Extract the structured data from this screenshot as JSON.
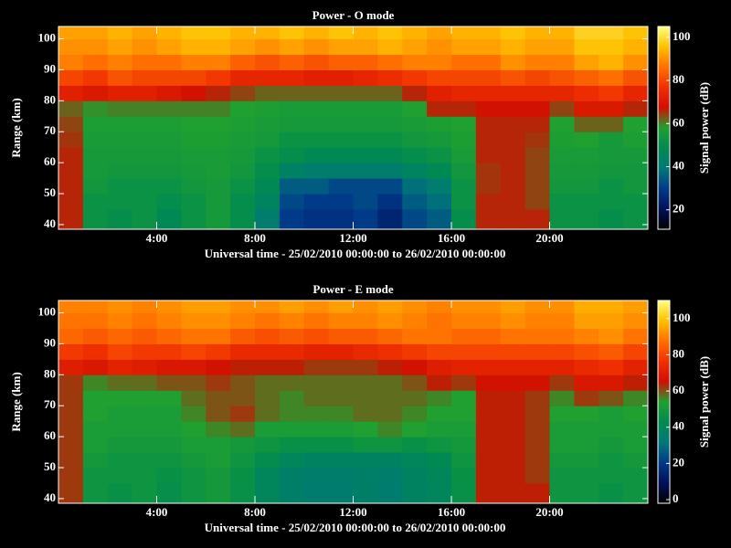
{
  "chart_data": [
    {
      "type": "heatmap",
      "title": "Power - O mode",
      "xlabel": "Universal time - 25/02/2010 00:00:00 to 26/02/2010 00:00:00",
      "ylabel": "Range (km)",
      "xlim": [
        0,
        24
      ],
      "ylim": [
        38.5,
        104
      ],
      "xticks": [
        {
          "value": 4,
          "label": "4:00"
        },
        {
          "value": 8,
          "label": "8:00"
        },
        {
          "value": 12,
          "label": "12:00"
        },
        {
          "value": 16,
          "label": "16:00"
        },
        {
          "value": 20,
          "label": "20:00"
        }
      ],
      "yticks": [
        40,
        50,
        60,
        70,
        80,
        90,
        100
      ],
      "xbins": [
        0,
        1,
        2,
        3,
        4,
        5,
        6,
        7,
        8,
        9,
        10,
        11,
        12,
        13,
        14,
        15,
        16,
        17,
        18,
        19,
        20,
        21,
        22,
        23,
        24
      ],
      "ybins": [
        38.5,
        45,
        50,
        55,
        60,
        65,
        70,
        75,
        80,
        85,
        90,
        95,
        100,
        104
      ],
      "values": [
        [
          66,
          52,
          50,
          52,
          48,
          52,
          55,
          50,
          42,
          30,
          28,
          28,
          30,
          25,
          32,
          35,
          50,
          66,
          66,
          66,
          52,
          52,
          50,
          52
        ],
        [
          66,
          52,
          52,
          52,
          50,
          52,
          55,
          50,
          45,
          32,
          30,
          30,
          32,
          28,
          35,
          38,
          52,
          66,
          66,
          64,
          52,
          52,
          52,
          52
        ],
        [
          66,
          54,
          52,
          52,
          52,
          54,
          55,
          52,
          48,
          35,
          35,
          32,
          32,
          32,
          38,
          42,
          52,
          65,
          66,
          64,
          54,
          54,
          52,
          54
        ],
        [
          66,
          55,
          54,
          54,
          54,
          55,
          56,
          54,
          50,
          44,
          42,
          42,
          42,
          42,
          45,
          48,
          54,
          65,
          66,
          64,
          55,
          55,
          54,
          54
        ],
        [
          66,
          55,
          55,
          55,
          55,
          56,
          56,
          55,
          52,
          50,
          48,
          48,
          48,
          48,
          50,
          52,
          56,
          66,
          66,
          64,
          56,
          56,
          55,
          55
        ],
        [
          65,
          56,
          56,
          56,
          56,
          57,
          57,
          56,
          55,
          52,
          52,
          52,
          52,
          52,
          54,
          55,
          57,
          66,
          66,
          65,
          57,
          58,
          55,
          57
        ],
        [
          64,
          57,
          57,
          57,
          57,
          58,
          58,
          57,
          56,
          55,
          55,
          55,
          55,
          55,
          56,
          57,
          58,
          66,
          66,
          66,
          58,
          62,
          62,
          58
        ],
        [
          62,
          59,
          60,
          60,
          60,
          60,
          60,
          58,
          57,
          56,
          56,
          56,
          56,
          56,
          58,
          66,
          66,
          68,
          68,
          68,
          64,
          70,
          70,
          66
        ],
        [
          72,
          70,
          72,
          72,
          70,
          68,
          66,
          64,
          62,
          62,
          62,
          62,
          62,
          62,
          66,
          72,
          74,
          74,
          74,
          74,
          74,
          76,
          78,
          74
        ],
        [
          80,
          78,
          82,
          80,
          80,
          80,
          78,
          74,
          74,
          74,
          72,
          72,
          74,
          76,
          78,
          80,
          80,
          80,
          82,
          80,
          82,
          84,
          86,
          82
        ],
        [
          88,
          86,
          88,
          86,
          86,
          88,
          88,
          84,
          82,
          84,
          82,
          84,
          84,
          86,
          88,
          88,
          86,
          86,
          90,
          88,
          88,
          92,
          94,
          90
        ],
        [
          90,
          90,
          92,
          90,
          92,
          94,
          94,
          92,
          90,
          92,
          90,
          92,
          92,
          94,
          92,
          90,
          92,
          92,
          94,
          92,
          92,
          96,
          96,
          94
        ],
        [
          92,
          92,
          94,
          92,
          94,
          96,
          96,
          94,
          94,
          96,
          94,
          96,
          94,
          96,
          94,
          92,
          94,
          94,
          96,
          94,
          94,
          98,
          98,
          96
        ]
      ],
      "colorbar": {
        "label": "Signal power (dB)",
        "lim": [
          11,
          105
        ],
        "ticks": [
          20,
          40,
          60,
          80,
          100
        ]
      },
      "colormap": [
        "#000000",
        "#00105a",
        "#003a8a",
        "#007878",
        "#008a50",
        "#20a030",
        "#d01000",
        "#f03000",
        "#ff7000",
        "#ffc000",
        "#ffff80"
      ]
    },
    {
      "type": "heatmap",
      "title": "Power - E mode",
      "xlabel": "Universal time - 25/02/2010 00:00:00 to 26/02/2010 00:00:00",
      "ylabel": "Range (km)",
      "xlim": [
        0,
        24
      ],
      "ylim": [
        38.5,
        104
      ],
      "xticks": [
        {
          "value": 4,
          "label": "4:00"
        },
        {
          "value": 8,
          "label": "8:00"
        },
        {
          "value": 12,
          "label": "12:00"
        },
        {
          "value": 16,
          "label": "16:00"
        },
        {
          "value": 20,
          "label": "20:00"
        }
      ],
      "yticks": [
        40,
        50,
        60,
        70,
        80,
        90,
        100
      ],
      "xbins": [
        0,
        1,
        2,
        3,
        4,
        5,
        6,
        7,
        8,
        9,
        10,
        11,
        12,
        13,
        14,
        15,
        16,
        17,
        18,
        19,
        20,
        21,
        22,
        23,
        24
      ],
      "ybins": [
        38.5,
        45,
        50,
        55,
        60,
        65,
        70,
        75,
        80,
        85,
        90,
        95,
        100,
        104
      ],
      "values": [
        [
          62,
          48,
          46,
          48,
          45,
          48,
          50,
          46,
          40,
          36,
          34,
          34,
          36,
          34,
          38,
          40,
          46,
          64,
          64,
          64,
          48,
          48,
          46,
          48
        ],
        [
          62,
          48,
          48,
          48,
          46,
          48,
          50,
          46,
          40,
          36,
          35,
          35,
          36,
          35,
          38,
          40,
          46,
          64,
          64,
          62,
          48,
          48,
          48,
          48
        ],
        [
          62,
          50,
          48,
          48,
          48,
          50,
          52,
          48,
          44,
          40,
          38,
          38,
          38,
          38,
          40,
          42,
          48,
          64,
          64,
          62,
          50,
          50,
          48,
          50
        ],
        [
          62,
          52,
          50,
          50,
          50,
          52,
          52,
          50,
          48,
          46,
          46,
          46,
          48,
          48,
          46,
          48,
          50,
          64,
          64,
          62,
          52,
          52,
          50,
          52
        ],
        [
          62,
          52,
          52,
          52,
          52,
          54,
          56,
          58,
          52,
          52,
          52,
          52,
          54,
          56,
          54,
          52,
          52,
          64,
          64,
          62,
          52,
          52,
          52,
          52
        ],
        [
          62,
          54,
          52,
          52,
          52,
          56,
          60,
          62,
          58,
          56,
          56,
          56,
          58,
          58,
          56,
          54,
          54,
          64,
          64,
          62,
          54,
          54,
          52,
          54
        ],
        [
          62,
          54,
          54,
          54,
          54,
          58,
          60,
          60,
          58,
          56,
          58,
          58,
          58,
          58,
          58,
          56,
          54,
          64,
          64,
          62,
          56,
          62,
          60,
          56
        ],
        [
          62,
          56,
          58,
          58,
          60,
          60,
          62,
          60,
          58,
          58,
          58,
          58,
          58,
          58,
          60,
          64,
          62,
          66,
          66,
          66,
          62,
          68,
          68,
          64
        ],
        [
          70,
          68,
          72,
          70,
          68,
          68,
          66,
          64,
          64,
          64,
          62,
          62,
          62,
          64,
          66,
          70,
          72,
          72,
          72,
          72,
          72,
          74,
          76,
          72
        ],
        [
          78,
          76,
          80,
          78,
          78,
          80,
          78,
          74,
          74,
          74,
          72,
          72,
          74,
          76,
          78,
          80,
          80,
          80,
          80,
          80,
          80,
          82,
          84,
          80
        ],
        [
          86,
          84,
          86,
          84,
          86,
          88,
          88,
          84,
          82,
          84,
          82,
          84,
          84,
          86,
          88,
          88,
          86,
          86,
          88,
          88,
          88,
          90,
          92,
          88
        ],
        [
          88,
          88,
          90,
          88,
          90,
          92,
          92,
          90,
          88,
          90,
          88,
          90,
          90,
          92,
          90,
          88,
          90,
          90,
          92,
          90,
          90,
          94,
          94,
          92
        ],
        [
          90,
          90,
          92,
          90,
          92,
          94,
          94,
          92,
          92,
          94,
          92,
          94,
          92,
          94,
          92,
          90,
          92,
          92,
          94,
          92,
          92,
          96,
          96,
          94
        ]
      ],
      "colorbar": {
        "label": "Signal power (dB)",
        "lim": [
          -2,
          110
        ],
        "ticks": [
          0,
          20,
          40,
          60,
          80,
          100
        ]
      },
      "colormap": [
        "#000000",
        "#00105a",
        "#003a8a",
        "#007878",
        "#008a50",
        "#20a030",
        "#d01000",
        "#f03000",
        "#ff7000",
        "#ffc000",
        "#ffff80"
      ]
    }
  ]
}
